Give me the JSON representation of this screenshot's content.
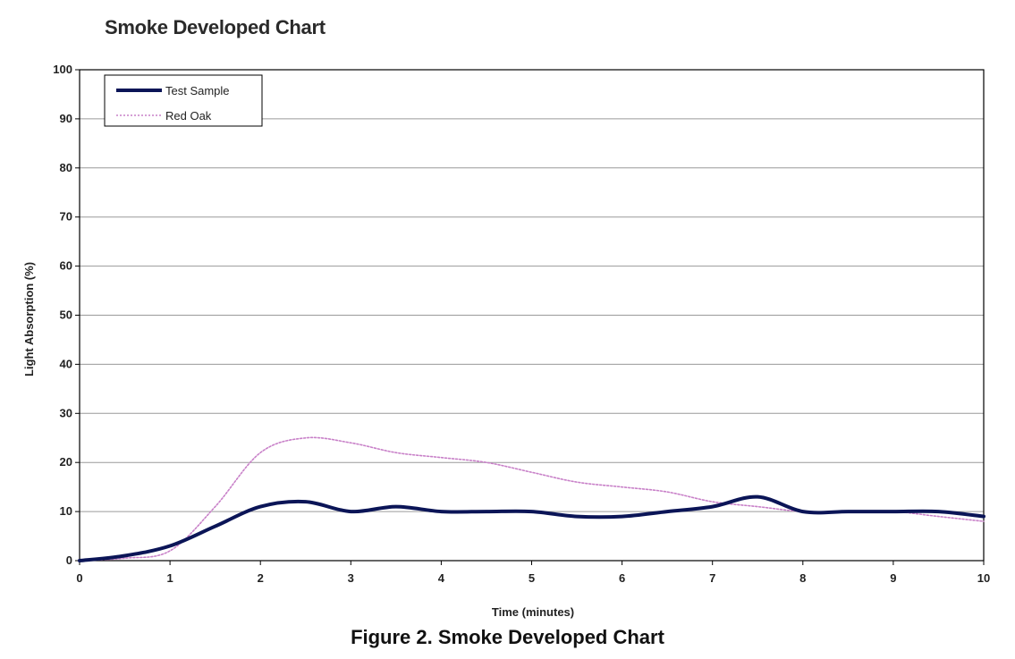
{
  "figure_caption": "Figure 2.  Smoke Developed Chart",
  "chart_data": {
    "type": "line",
    "title": "Smoke Developed Chart",
    "xlabel": "Time (minutes)",
    "ylabel": "Light Absorption  (%)",
    "xlim": [
      0,
      10
    ],
    "ylim": [
      0,
      100
    ],
    "xticks": [
      0,
      1,
      2,
      3,
      4,
      5,
      6,
      7,
      8,
      9,
      10
    ],
    "yticks": [
      0,
      10,
      20,
      30,
      40,
      50,
      60,
      70,
      80,
      90,
      100
    ],
    "grid": "horizontal",
    "legend_position": "top-left",
    "series": [
      {
        "name": "Test Sample",
        "color": "#0b1557",
        "style": "solid-thick",
        "x": [
          0,
          0.5,
          1,
          1.5,
          2,
          2.5,
          3,
          3.5,
          4,
          4.5,
          5,
          5.5,
          6,
          6.5,
          7,
          7.5,
          8,
          8.5,
          9,
          9.5,
          10
        ],
        "y": [
          0,
          1,
          3,
          7,
          11,
          12,
          10,
          11,
          10,
          10,
          10,
          9,
          9,
          10,
          11,
          13,
          10,
          10,
          10,
          10,
          9
        ]
      },
      {
        "name": "Red Oak",
        "color": "#c880c8",
        "style": "dotted",
        "x": [
          0,
          0.5,
          1,
          1.5,
          2,
          2.5,
          3,
          3.5,
          4,
          4.5,
          5,
          5.5,
          6,
          6.5,
          7,
          7.5,
          8,
          8.5,
          9,
          9.5,
          10
        ],
        "y": [
          0,
          0.5,
          2,
          11,
          22,
          25,
          24,
          22,
          21,
          20,
          18,
          16,
          15,
          14,
          12,
          11,
          10,
          10,
          10,
          9,
          8
        ]
      }
    ]
  }
}
